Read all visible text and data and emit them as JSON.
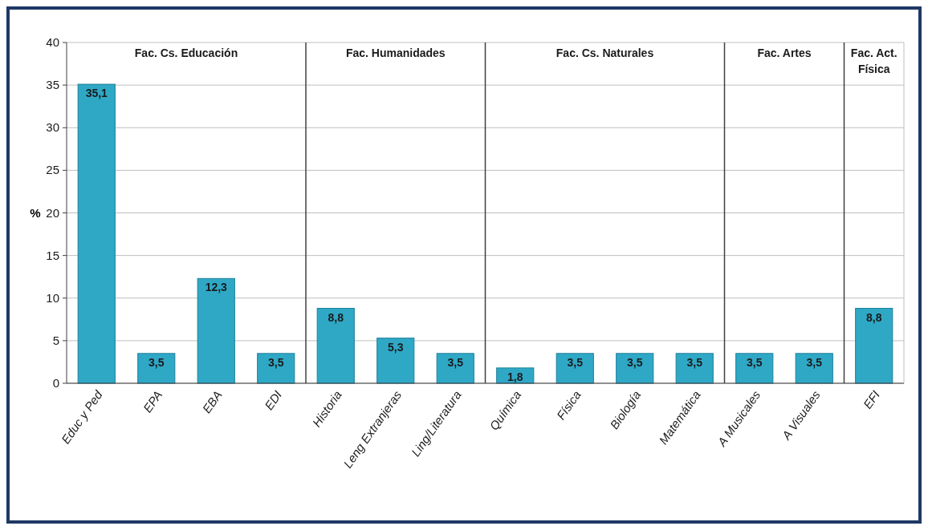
{
  "chart_data": {
    "type": "bar",
    "ylabel": "%",
    "categories": [
      "Educ y Ped",
      "EPA",
      "EBA",
      "EDI",
      "Historia",
      "Leng Extranjeras",
      "Ling/Literatura",
      "Química",
      "Física",
      "Biología",
      "Matemática",
      "A Musicales",
      "A Visuales",
      "EFI"
    ],
    "values": [
      35.1,
      3.5,
      12.3,
      3.5,
      8.8,
      5.3,
      3.5,
      1.8,
      3.5,
      3.5,
      3.5,
      3.5,
      3.5,
      8.8
    ],
    "value_labels": [
      "35,1",
      "3,5",
      "12,3",
      "3,5",
      "8,8",
      "5,3",
      "3,5",
      "1,8",
      "3,5",
      "3,5",
      "3,5",
      "3,5",
      "3,5",
      "8,8"
    ],
    "color": "#2fa8c6",
    "ylim": [
      0,
      40
    ],
    "yticks": [
      0,
      5,
      10,
      15,
      20,
      25,
      30,
      35,
      40
    ],
    "grid": "y",
    "ref_lines": [
      {
        "axis": "x",
        "value": "Historia",
        "color": "#404040"
      },
      {
        "axis": "x",
        "value": "Química",
        "color": "#404040"
      },
      {
        "axis": "x",
        "value": "A Musicales",
        "color": "#404040"
      },
      {
        "axis": "x",
        "value": "EFI",
        "color": "#404040"
      }
    ],
    "annotations": [
      "Fac. Cs. Educación",
      "Fac. Humanidades",
      "Fac. Cs. Naturales",
      "Fac. Artes",
      "Fac. Act. Física"
    ]
  }
}
